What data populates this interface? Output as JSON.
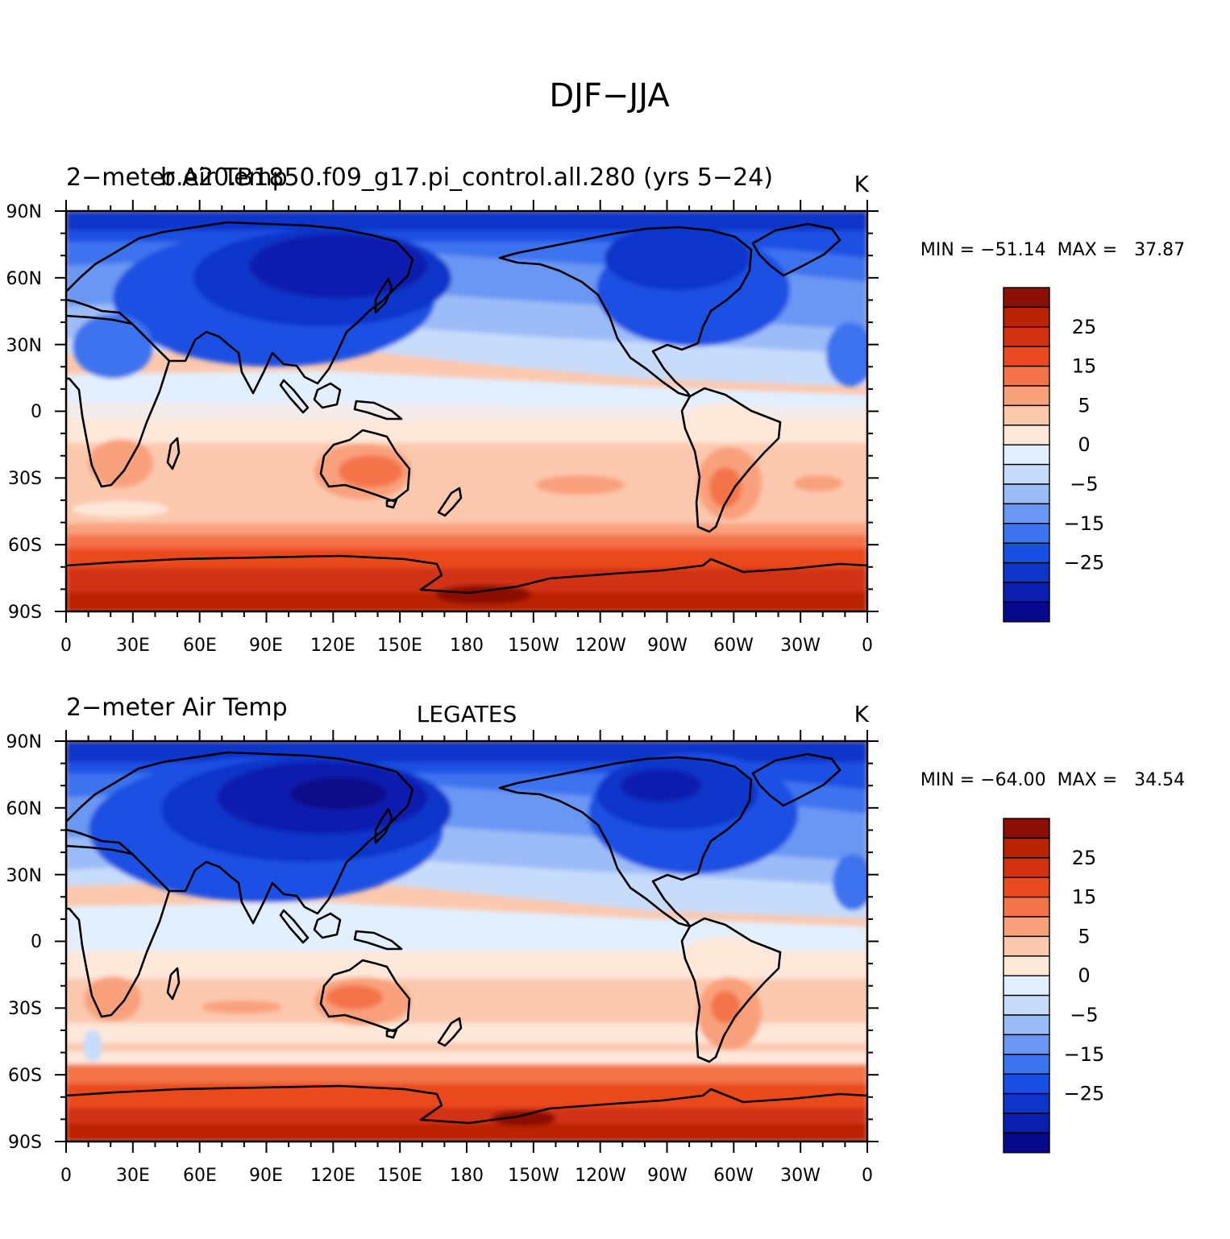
{
  "main_title": "DJF−JJA",
  "colors": {
    "levels": [
      "#08088a",
      "#0b1fae",
      "#0f34c9",
      "#1a4fe3",
      "#3c73ef",
      "#6b97f4",
      "#9cbcf8",
      "#c7dcfb",
      "#e2efff",
      "#fde8da",
      "#fcc8ae",
      "#f9a07c",
      "#f4734a",
      "#ea4a1f",
      "#d23212",
      "#ba2204",
      "#8b0f04"
    ],
    "coast": "#000000",
    "frame": "#000000"
  },
  "colorbar_labels": [
    "25",
    "15",
    "5",
    "0",
    "−5",
    "−15",
    "−25"
  ],
  "longitude_ticks": [
    "0",
    "30E",
    "60E",
    "90E",
    "120E",
    "150E",
    "180",
    "150W",
    "120W",
    "90W",
    "60W",
    "30W",
    "0"
  ],
  "latitude_ticks": [
    "90N",
    "60N",
    "30N",
    "0",
    "30S",
    "60S",
    "90S"
  ],
  "panels": [
    {
      "left_title": "2−meter Air Temp",
      "center_title": "b.e20.B1850.f09_g17.pi_control.all.280 (yrs 5−24)",
      "units": "K",
      "stats": "MIN = −51.14  MAX =   37.87"
    },
    {
      "left_title": "2−meter Air Temp",
      "center_title": "LEGATES",
      "units": "K",
      "stats": "MIN = −64.00  MAX =   34.54"
    }
  ]
}
